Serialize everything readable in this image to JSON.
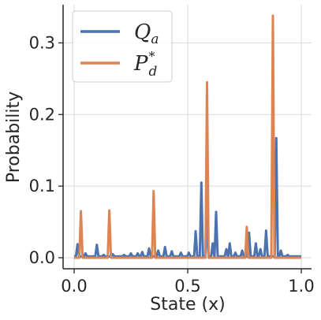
{
  "chart_data": {
    "type": "line",
    "xlabel": "State (x)",
    "ylabel": "Probability",
    "xlim": [
      0.0,
      1.0
    ],
    "ylim": [
      0.0,
      0.35
    ],
    "x_ticks": [
      {
        "value": 0.0,
        "label": "0.0"
      },
      {
        "value": 0.5,
        "label": "0.5"
      },
      {
        "value": 1.0,
        "label": "1.0"
      }
    ],
    "y_ticks": [
      {
        "value": 0.0,
        "label": "0.0"
      },
      {
        "value": 0.1,
        "label": "0.1"
      },
      {
        "value": 0.2,
        "label": "0.2"
      },
      {
        "value": 0.3,
        "label": "0.3"
      }
    ],
    "grid": true,
    "legend_position": "top-left",
    "series": [
      {
        "name": "Q_a",
        "legend_main": "Q",
        "legend_sub": "a",
        "legend_sup": "",
        "color": "#4c72b0",
        "baseline": 0.002,
        "peaks": [
          [
            0.015,
            0.019
          ],
          [
            0.05,
            0.006
          ],
          [
            0.1,
            0.018
          ],
          [
            0.13,
            0.004
          ],
          [
            0.17,
            0.005
          ],
          [
            0.22,
            0.004
          ],
          [
            0.25,
            0.006
          ],
          [
            0.28,
            0.006
          ],
          [
            0.3,
            0.008
          ],
          [
            0.33,
            0.013
          ],
          [
            0.37,
            0.01
          ],
          [
            0.4,
            0.015
          ],
          [
            0.43,
            0.009
          ],
          [
            0.47,
            0.007
          ],
          [
            0.505,
            0.007
          ],
          [
            0.535,
            0.037
          ],
          [
            0.56,
            0.105
          ],
          [
            0.585,
            0.055
          ],
          [
            0.61,
            0.02
          ],
          [
            0.625,
            0.064
          ],
          [
            0.67,
            0.012
          ],
          [
            0.685,
            0.02
          ],
          [
            0.71,
            0.007
          ],
          [
            0.74,
            0.01
          ],
          [
            0.77,
            0.035
          ],
          [
            0.8,
            0.02
          ],
          [
            0.82,
            0.012
          ],
          [
            0.845,
            0.038
          ],
          [
            0.89,
            0.167
          ],
          [
            0.91,
            0.01
          ],
          [
            0.94,
            0.004
          ],
          [
            0.96,
            0.002
          ]
        ]
      },
      {
        "name": "P*_d",
        "legend_main": "P",
        "legend_sub": "d",
        "legend_sup": "*",
        "color": "#dd8452",
        "baseline": 0.0,
        "peaks": [
          [
            0.03,
            0.065
          ],
          [
            0.155,
            0.066
          ],
          [
            0.35,
            0.093
          ],
          [
            0.585,
            0.245
          ],
          [
            0.76,
            0.043
          ],
          [
            0.875,
            0.338
          ]
        ]
      }
    ]
  }
}
